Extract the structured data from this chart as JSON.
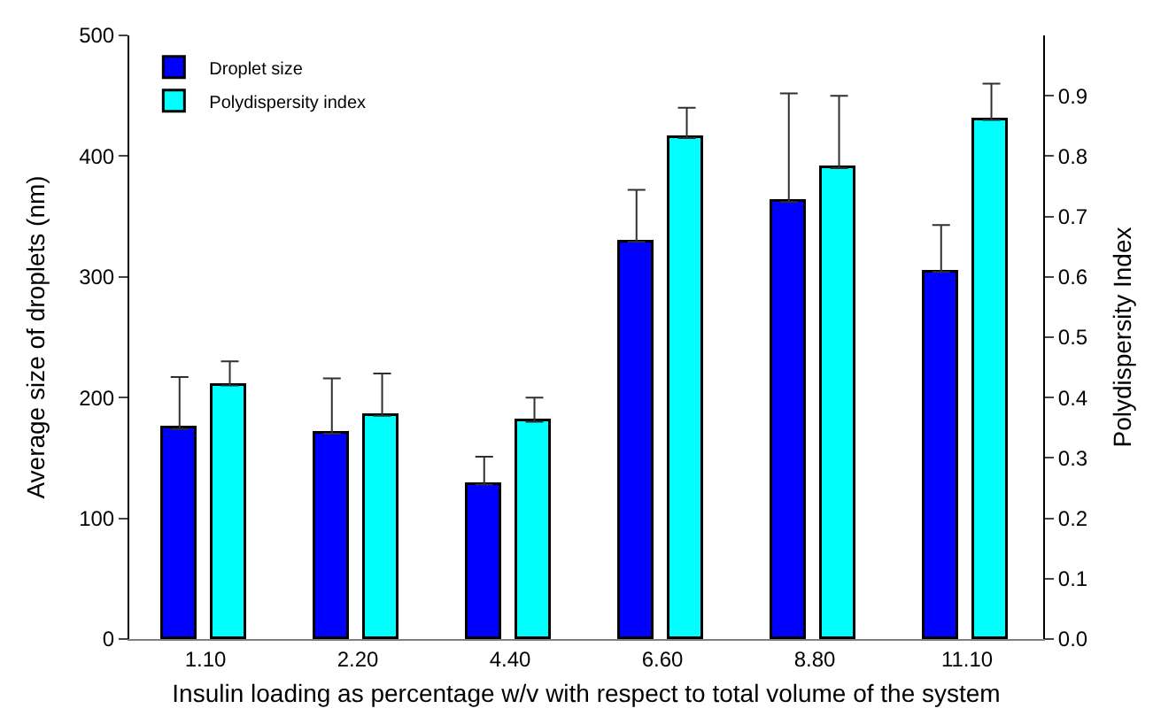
{
  "chart_data": {
    "type": "bar",
    "xlabel": "Insulin loading as percentage w/v with respect to total volume of the system",
    "ylabel": "Average size of droplets (nm)",
    "y2label": "Polydispersity Index",
    "categories": [
      "1.10",
      "2.20",
      "4.40",
      "6.60",
      "8.80",
      "11.10"
    ],
    "series": [
      {
        "name": "Droplet size",
        "color": "#0000ff",
        "values": [
          174,
          170,
          128,
          329,
          362,
          304
        ],
        "errors": [
          [
            174,
            217
          ],
          [
            170,
            216
          ],
          [
            128,
            151
          ],
          [
            329,
            372
          ],
          [
            362,
            452
          ],
          [
            304,
            343
          ]
        ]
      },
      {
        "name": "Polydispersity index",
        "color": "#00ffff",
        "axis": "y2",
        "values": [
          0.42,
          0.37,
          0.36,
          0.83,
          0.78,
          0.86
        ],
        "errors": [
          [
            0.42,
            0.46
          ],
          [
            0.37,
            0.44
          ],
          [
            0.36,
            0.4
          ],
          [
            0.83,
            0.88
          ],
          [
            0.78,
            0.9
          ],
          [
            0.86,
            0.92
          ]
        ]
      }
    ],
    "ylim": [
      0,
      500
    ],
    "yticks": [
      0,
      100,
      200,
      300,
      400,
      500
    ],
    "y2lim": [
      0,
      1.0
    ],
    "y2ticks": [
      {
        "value": 0,
        "label": "0.0"
      },
      {
        "value": 0.1,
        "label": "0.1"
      },
      {
        "value": 0.2,
        "label": "0.2"
      },
      {
        "value": 0.3,
        "label": "0.3"
      },
      {
        "value": 0.4,
        "label": "0.4"
      },
      {
        "value": 0.5,
        "label": "0.5"
      },
      {
        "value": 0.6,
        "label": "0.6"
      },
      {
        "value": 0.7,
        "label": "0.7"
      },
      {
        "value": 0.8,
        "label": "0.8"
      },
      {
        "value": 0.9,
        "label": "0.9"
      }
    ],
    "legend": "top left"
  }
}
